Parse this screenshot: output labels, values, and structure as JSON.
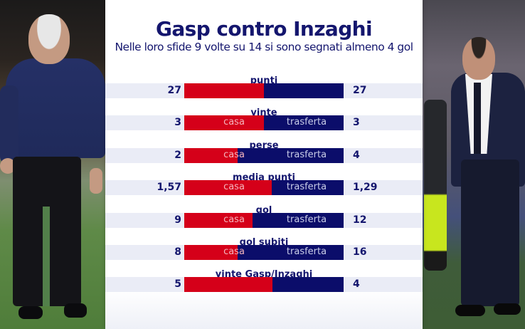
{
  "header": {
    "title": "Gasp contro Inzaghi",
    "subtitle": "Nelle loro sfide 9 volte su 14 si sono segnati almeno 4 gol"
  },
  "photos": {
    "left": "photo-gasperini",
    "right": "photo-inzaghi"
  },
  "colors": {
    "home": "#d50019",
    "away": "#0b0d6a",
    "text": "#14166e",
    "band": "#eaecf6"
  },
  "segment_labels": {
    "home": "casa",
    "away": "trasferta"
  },
  "rows": [
    {
      "label": "punti",
      "left": "27",
      "right": "27",
      "left_num": 27,
      "right_num": 27,
      "show_seg_labels": false
    },
    {
      "label": "vinte",
      "left": "3",
      "right": "3",
      "left_num": 3,
      "right_num": 3,
      "show_seg_labels": true
    },
    {
      "label": "perse",
      "left": "2",
      "right": "4",
      "left_num": 2,
      "right_num": 4,
      "show_seg_labels": true
    },
    {
      "label": "media punti",
      "left": "1,57",
      "right": "1,29",
      "left_num": 1.57,
      "right_num": 1.29,
      "show_seg_labels": true
    },
    {
      "label": "gol",
      "left": "9",
      "right": "12",
      "left_num": 9,
      "right_num": 12,
      "show_seg_labels": true
    },
    {
      "label": "gol subiti",
      "left": "8",
      "right": "16",
      "left_num": 8,
      "right_num": 16,
      "show_seg_labels": true
    },
    {
      "label": "vinte Gasp/Inzaghi",
      "left": "5",
      "right": "4",
      "left_num": 5,
      "right_num": 4,
      "show_seg_labels": false
    }
  ],
  "chart_data": {
    "type": "bar",
    "subtype": "diverging-stacked-100",
    "title": "Gasp contro Inzaghi",
    "subtitle": "Nelle loro sfide 9 volte su 14 si sono segnati almeno 4 gol",
    "categories": [
      "punti",
      "vinte",
      "perse",
      "media punti",
      "gol",
      "gol subiti",
      "vinte Gasp/Inzaghi"
    ],
    "series": [
      {
        "name": "casa",
        "color": "#d50019",
        "values": [
          27,
          3,
          2,
          1.57,
          9,
          8,
          5
        ]
      },
      {
        "name": "trasferta",
        "color": "#0b0d6a",
        "values": [
          27,
          3,
          4,
          1.29,
          12,
          16,
          4
        ]
      }
    ],
    "xlabel": "",
    "ylabel": "",
    "grid": false,
    "legend": "inline segment labels (casa / trasferta)"
  }
}
